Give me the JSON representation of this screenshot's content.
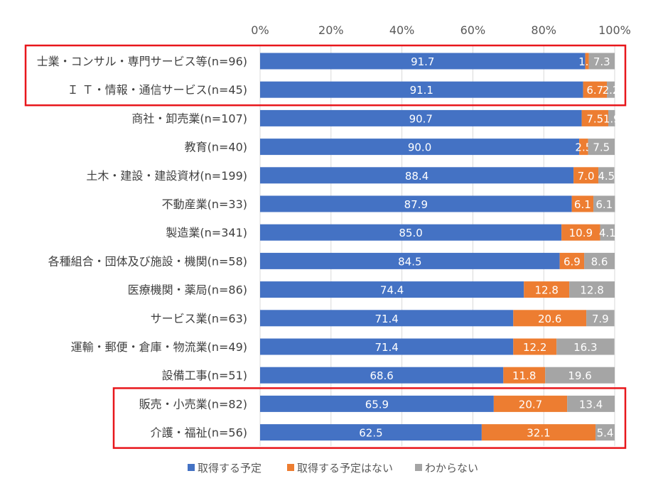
{
  "chart_data": {
    "type": "bar",
    "orientation": "horizontal",
    "stacked": "100%",
    "categories": [
      "士業・コンサル・専門サービス等(n=96)",
      "Ｉ Ｔ・情報・通信サービス(n=45)",
      "商社・卸売業(n=107)",
      "教育(n=40)",
      "土木・建設・建設資材(n=199)",
      "不動産業(n=33)",
      "製造業(n=341)",
      "各種組合・団体及び施設・機関(n=58)",
      "医療機関・薬局(n=86)",
      "サービス業(n=63)",
      "運輸・郵便・倉庫・物流業(n=49)",
      "設備工事(n=51)",
      "販売・小売業(n=82)",
      "介護・福祉(n=56)"
    ],
    "series": [
      {
        "name": "取得する予定",
        "color": "#4472C4",
        "values": [
          91.7,
          91.1,
          90.7,
          90.0,
          88.4,
          87.9,
          85.0,
          84.5,
          74.4,
          71.4,
          71.4,
          68.6,
          65.9,
          62.5
        ]
      },
      {
        "name": "取得する予定はない",
        "color": "#ED7D31",
        "values": [
          1.0,
          6.7,
          7.5,
          2.5,
          7.0,
          6.1,
          10.9,
          6.9,
          12.8,
          20.6,
          12.2,
          11.8,
          20.7,
          32.1
        ]
      },
      {
        "name": "わからない",
        "color": "#A5A5A5",
        "values": [
          7.3,
          2.2,
          1.9,
          7.5,
          4.5,
          6.1,
          4.1,
          8.6,
          12.8,
          7.9,
          16.3,
          19.6,
          13.4,
          5.4
        ]
      }
    ],
    "axis_ticks": [
      "0%",
      "20%",
      "40%",
      "60%",
      "80%",
      "100%"
    ],
    "xlim": [
      0,
      100
    ],
    "grid": true,
    "legend_position": "bottom-center",
    "highlight_groups": [
      {
        "from_index": 0,
        "to_index": 1,
        "color": "#E8161B"
      },
      {
        "from_index": 12,
        "to_index": 13,
        "color": "#E8161B"
      }
    ]
  }
}
